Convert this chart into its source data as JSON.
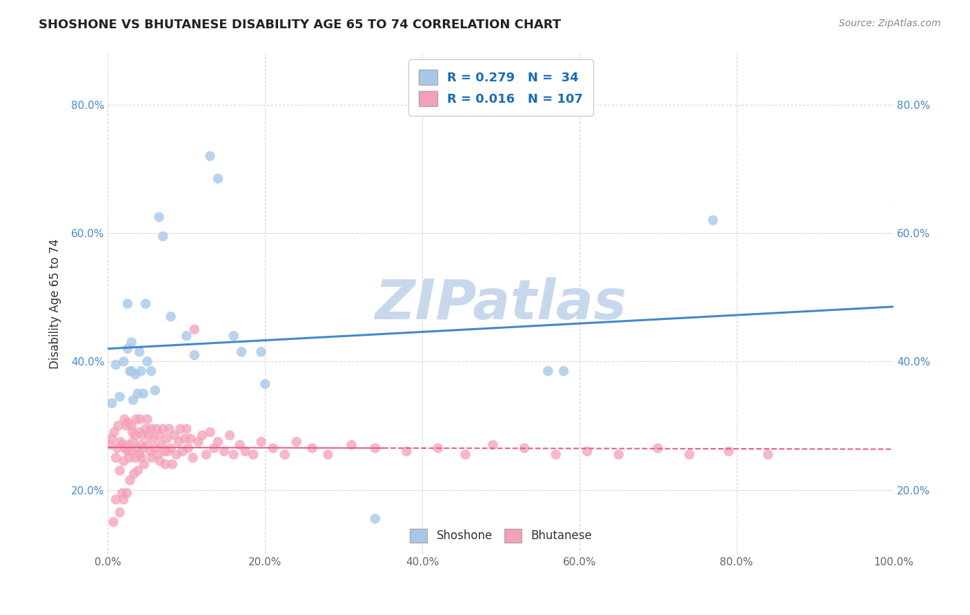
{
  "title": "SHOSHONE VS BHUTANESE DISABILITY AGE 65 TO 74 CORRELATION CHART",
  "source_text": "Source: ZipAtlas.com",
  "ylabel": "Disability Age 65 to 74",
  "xlim": [
    0,
    1
  ],
  "ylim": [
    0.1,
    0.88
  ],
  "xticks": [
    0.0,
    0.2,
    0.4,
    0.6,
    0.8,
    1.0
  ],
  "xtick_labels": [
    "0.0%",
    "20.0%",
    "40.0%",
    "60.0%",
    "80.0%",
    "100.0%"
  ],
  "yticks": [
    0.2,
    0.4,
    0.6,
    0.8
  ],
  "ytick_labels": [
    "20.0%",
    "40.0%",
    "60.0%",
    "80.0%"
  ],
  "shoshone_R": 0.279,
  "shoshone_N": 34,
  "bhutanese_R": 0.016,
  "bhutanese_N": 107,
  "shoshone_color": "#a8c8e8",
  "bhutanese_color": "#f4a0b8",
  "shoshone_line_color": "#4488cc",
  "bhutanese_line_color": "#e06080",
  "background_color": "#ffffff",
  "grid_color": "#cccccc",
  "watermark": "ZIPatlas",
  "watermark_color": "#c8d8ec",
  "shoshone_x": [
    0.005,
    0.01,
    0.015,
    0.02,
    0.025,
    0.025,
    0.028,
    0.03,
    0.03,
    0.032,
    0.035,
    0.038,
    0.04,
    0.042,
    0.045,
    0.048,
    0.05,
    0.055,
    0.06,
    0.065,
    0.07,
    0.08,
    0.1,
    0.11,
    0.13,
    0.14,
    0.16,
    0.17,
    0.195,
    0.2,
    0.34,
    0.56,
    0.58,
    0.77
  ],
  "shoshone_y": [
    0.335,
    0.395,
    0.345,
    0.4,
    0.49,
    0.42,
    0.385,
    0.43,
    0.385,
    0.34,
    0.38,
    0.35,
    0.415,
    0.385,
    0.35,
    0.49,
    0.4,
    0.385,
    0.355,
    0.625,
    0.595,
    0.47,
    0.44,
    0.41,
    0.72,
    0.685,
    0.44,
    0.415,
    0.415,
    0.365,
    0.155,
    0.385,
    0.385,
    0.62
  ],
  "bhutanese_x": [
    0.003,
    0.005,
    0.007,
    0.008,
    0.01,
    0.01,
    0.012,
    0.013,
    0.015,
    0.015,
    0.016,
    0.018,
    0.018,
    0.02,
    0.02,
    0.021,
    0.022,
    0.023,
    0.024,
    0.025,
    0.025,
    0.026,
    0.027,
    0.028,
    0.03,
    0.03,
    0.031,
    0.032,
    0.033,
    0.035,
    0.035,
    0.036,
    0.037,
    0.038,
    0.04,
    0.04,
    0.041,
    0.042,
    0.043,
    0.044,
    0.045,
    0.046,
    0.048,
    0.05,
    0.05,
    0.052,
    0.054,
    0.055,
    0.056,
    0.058,
    0.06,
    0.062,
    0.063,
    0.065,
    0.066,
    0.068,
    0.07,
    0.072,
    0.073,
    0.075,
    0.076,
    0.078,
    0.08,
    0.082,
    0.085,
    0.087,
    0.09,
    0.092,
    0.095,
    0.098,
    0.1,
    0.102,
    0.105,
    0.108,
    0.11,
    0.115,
    0.12,
    0.125,
    0.13,
    0.135,
    0.14,
    0.148,
    0.155,
    0.16,
    0.168,
    0.175,
    0.185,
    0.195,
    0.21,
    0.225,
    0.24,
    0.26,
    0.28,
    0.31,
    0.34,
    0.38,
    0.42,
    0.455,
    0.49,
    0.53,
    0.57,
    0.61,
    0.65,
    0.7,
    0.74,
    0.79,
    0.84
  ],
  "bhutanese_y": [
    0.27,
    0.28,
    0.15,
    0.29,
    0.185,
    0.25,
    0.265,
    0.3,
    0.165,
    0.23,
    0.275,
    0.195,
    0.27,
    0.185,
    0.245,
    0.31,
    0.265,
    0.3,
    0.195,
    0.26,
    0.305,
    0.27,
    0.25,
    0.215,
    0.3,
    0.26,
    0.29,
    0.275,
    0.225,
    0.285,
    0.25,
    0.31,
    0.265,
    0.23,
    0.29,
    0.255,
    0.31,
    0.27,
    0.25,
    0.285,
    0.265,
    0.24,
    0.295,
    0.27,
    0.31,
    0.285,
    0.26,
    0.295,
    0.25,
    0.28,
    0.265,
    0.295,
    0.255,
    0.285,
    0.245,
    0.27,
    0.295,
    0.26,
    0.24,
    0.28,
    0.26,
    0.295,
    0.265,
    0.24,
    0.285,
    0.255,
    0.275,
    0.295,
    0.26,
    0.28,
    0.295,
    0.265,
    0.28,
    0.25,
    0.45,
    0.275,
    0.285,
    0.255,
    0.29,
    0.265,
    0.275,
    0.26,
    0.285,
    0.255,
    0.27,
    0.26,
    0.255,
    0.275,
    0.265,
    0.255,
    0.275,
    0.265,
    0.255,
    0.27,
    0.265,
    0.26,
    0.265,
    0.255,
    0.27,
    0.265,
    0.255,
    0.26,
    0.255,
    0.265,
    0.255,
    0.26,
    0.255
  ]
}
